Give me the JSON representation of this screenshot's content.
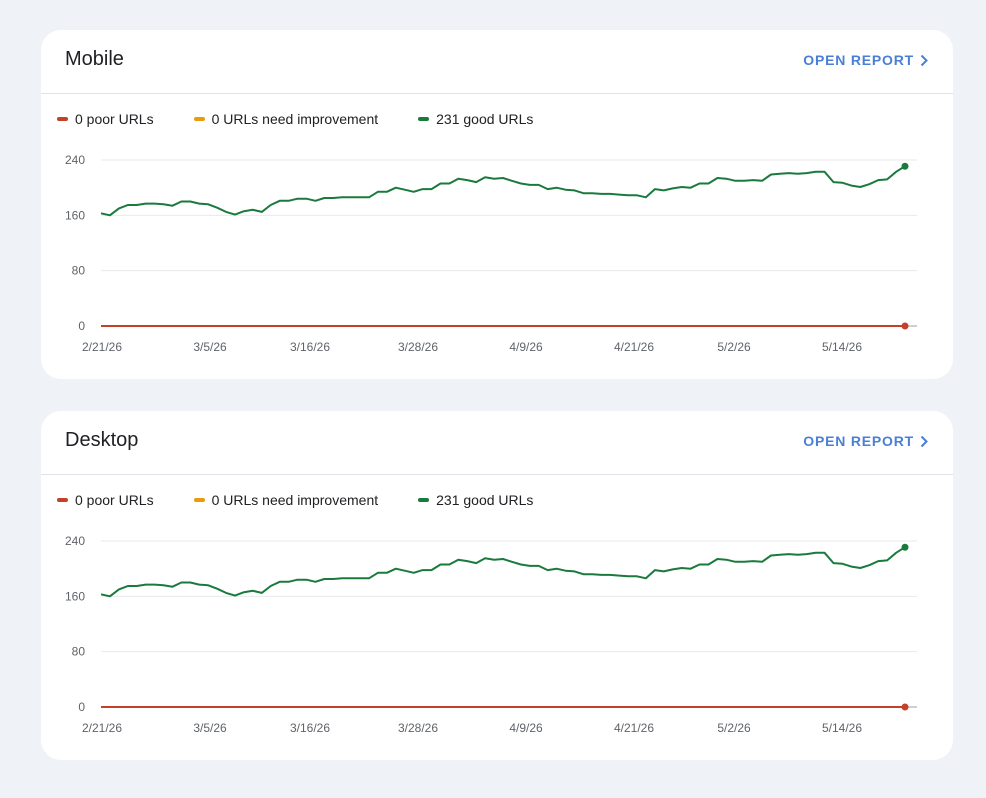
{
  "colors": {
    "poor": "#c5402b",
    "needs_improvement": "#e99b0c",
    "good": "#1a7a3d",
    "link": "#4a7fd6"
  },
  "cards": [
    {
      "title": "Mobile",
      "open_report": "OPEN REPORT",
      "legend": [
        {
          "label": "0 poor URLs",
          "color": "#c5402b"
        },
        {
          "label": "0 URLs need improvement",
          "color": "#e99b0c"
        },
        {
          "label": "231 good URLs",
          "color": "#1a7a3d"
        }
      ]
    },
    {
      "title": "Desktop",
      "open_report": "OPEN REPORT",
      "legend": [
        {
          "label": "0 poor URLs",
          "color": "#c5402b"
        },
        {
          "label": "0 URLs need improvement",
          "color": "#e99b0c"
        },
        {
          "label": "231 good URLs",
          "color": "#1a7a3d"
        }
      ]
    }
  ],
  "chart_data": [
    {
      "type": "line",
      "title": "Mobile",
      "x_ticks": [
        "2/21/26",
        "3/5/26",
        "3/16/26",
        "3/28/26",
        "4/9/26",
        "4/21/26",
        "5/2/26",
        "5/14/26"
      ],
      "y_ticks": [
        0,
        80,
        160,
        240
      ],
      "ylim": [
        0,
        240
      ],
      "grid": true,
      "legend_position": "top-left",
      "series": [
        {
          "name": "0 poor URLs",
          "color": "#c5402b",
          "values": [
            0
          ]
        },
        {
          "name": "0 URLs need improvement",
          "color": "#e99b0c",
          "values": [
            0
          ]
        },
        {
          "name": "231 good URLs",
          "color": "#1a7a3d",
          "values": [
            163,
            160,
            170,
            175,
            175,
            177,
            177,
            176,
            174,
            180,
            180,
            177,
            176,
            171,
            165,
            161,
            166,
            168,
            165,
            175,
            181,
            181,
            184,
            184,
            181,
            185,
            185,
            186,
            186,
            186,
            186,
            194,
            194,
            200,
            197,
            194,
            198,
            198,
            206,
            206,
            213,
            211,
            208,
            215,
            213,
            214,
            210,
            206,
            204,
            204,
            198,
            200,
            197,
            196,
            192,
            192,
            191,
            191,
            190,
            189,
            189,
            186,
            198,
            196,
            199,
            201,
            200,
            206,
            206,
            214,
            213,
            210,
            210,
            211,
            210,
            219,
            220,
            221,
            220,
            221,
            223,
            223,
            208,
            207,
            203,
            201,
            205,
            211,
            212,
            223,
            231
          ]
        }
      ]
    },
    {
      "type": "line",
      "title": "Desktop",
      "x_ticks": [
        "2/21/26",
        "3/5/26",
        "3/16/26",
        "3/28/26",
        "4/9/26",
        "4/21/26",
        "5/2/26",
        "5/14/26"
      ],
      "y_ticks": [
        0,
        80,
        160,
        240
      ],
      "ylim": [
        0,
        240
      ],
      "grid": true,
      "legend_position": "top-left",
      "series": [
        {
          "name": "0 poor URLs",
          "color": "#c5402b",
          "values": [
            0
          ]
        },
        {
          "name": "0 URLs need improvement",
          "color": "#e99b0c",
          "values": [
            0
          ]
        },
        {
          "name": "231 good URLs",
          "color": "#1a7a3d",
          "values": [
            163,
            160,
            170,
            175,
            175,
            177,
            177,
            176,
            174,
            180,
            180,
            177,
            176,
            171,
            165,
            161,
            166,
            168,
            165,
            175,
            181,
            181,
            184,
            184,
            181,
            185,
            185,
            186,
            186,
            186,
            186,
            194,
            194,
            200,
            197,
            194,
            198,
            198,
            206,
            206,
            213,
            211,
            208,
            215,
            213,
            214,
            210,
            206,
            204,
            204,
            198,
            200,
            197,
            196,
            192,
            192,
            191,
            191,
            190,
            189,
            189,
            186,
            198,
            196,
            199,
            201,
            200,
            206,
            206,
            214,
            213,
            210,
            210,
            211,
            210,
            219,
            220,
            221,
            220,
            221,
            223,
            223,
            208,
            207,
            203,
            201,
            205,
            211,
            212,
            223,
            231
          ]
        }
      ]
    }
  ]
}
